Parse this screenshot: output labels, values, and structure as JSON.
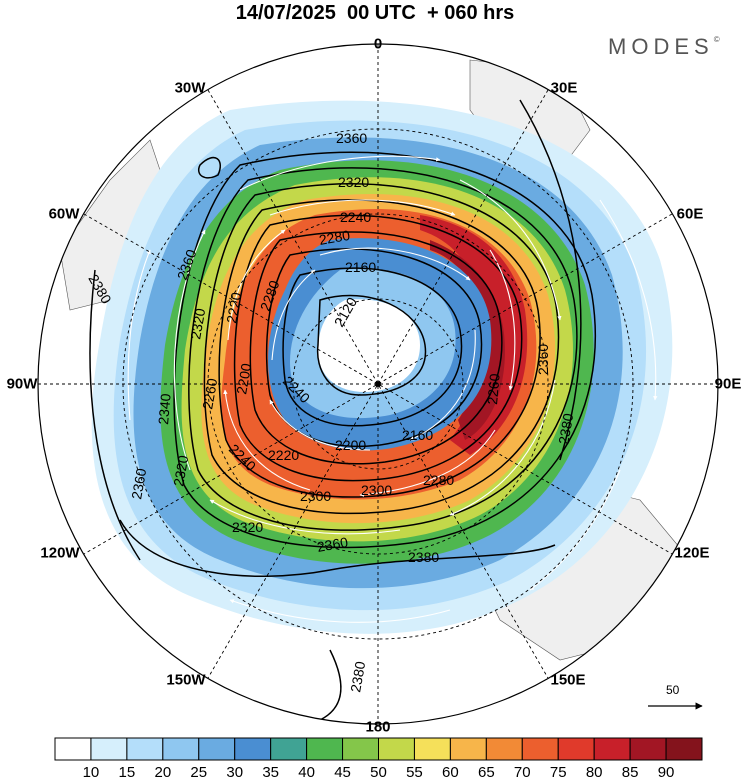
{
  "title": "14/07/2025  00 UTC  + 060 hrs",
  "brand": "MODES",
  "brand_mark": "©",
  "longitude_labels": {
    "n0": "0",
    "e30": "30E",
    "e60": "60E",
    "e90": "90E",
    "e120": "120E",
    "e150": "150E",
    "s180": "180",
    "w150": "150W",
    "w120": "120W",
    "w90": "90W",
    "w60": "60W",
    "w30": "30W"
  },
  "contour_labels": [
    "2360",
    "2320",
    "2280",
    "2240",
    "2160",
    "2120",
    "2200",
    "2240",
    "2200",
    "2160",
    "2220",
    "2300",
    "2300",
    "2280",
    "2260",
    "2360",
    "2380",
    "2380",
    "2380",
    "2360",
    "2360",
    "2340",
    "2320",
    "2260",
    "2220",
    "2280",
    "2320",
    "2360",
    "2380",
    "2320",
    "2240"
  ],
  "colorbar": {
    "levels": [
      10,
      15,
      20,
      25,
      30,
      35,
      40,
      45,
      50,
      55,
      60,
      65,
      70,
      75,
      80,
      85,
      90
    ],
    "colors": [
      "#ffffff",
      "#d6effc",
      "#b4defa",
      "#8fc7f0",
      "#6aabe1",
      "#4a8ed2",
      "#40a394",
      "#4fb74f",
      "#84c64a",
      "#c3d84a",
      "#f5e05a",
      "#f7b54a",
      "#f28a36",
      "#ec5f2e",
      "#e03a2b",
      "#c8202a",
      "#a21624",
      "#84131c"
    ]
  },
  "reference_vector": "50"
}
